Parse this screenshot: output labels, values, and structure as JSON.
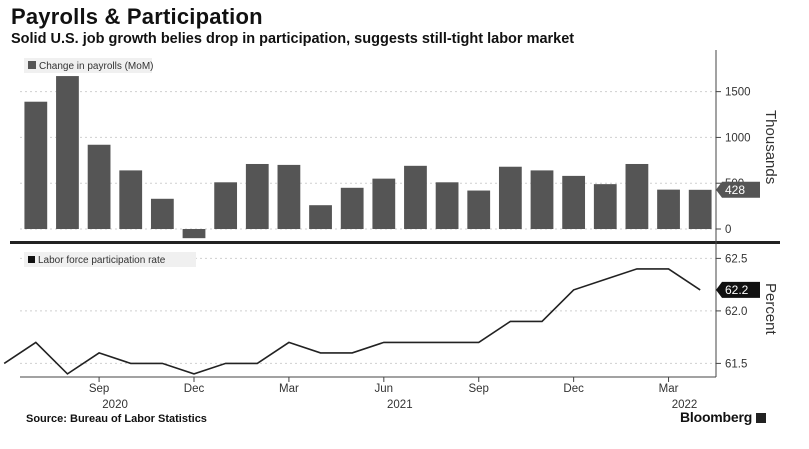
{
  "title": "Payrolls & Participation",
  "subtitle": "Solid U.S. job growth belies drop in participation, suggests still-tight labor market",
  "source": "Source: Bureau of Labor Statistics",
  "brand": "Bloomberg",
  "chart_data": [
    {
      "type": "bar",
      "legend": "Change in payrolls (MoM)",
      "ylabel": "Thousands",
      "ylim": [
        -120,
        1900
      ],
      "yticks": [
        0,
        500,
        1000,
        1500
      ],
      "ytick_labels": [
        "0",
        "500",
        "1000",
        "1500"
      ],
      "last_value_label": "428",
      "categories": [
        "2020-07",
        "2020-08",
        "2020-09",
        "2020-10",
        "2020-11",
        "2020-12",
        "2021-01",
        "2021-02",
        "2021-03",
        "2021-04",
        "2021-05",
        "2021-06",
        "2021-07",
        "2021-08",
        "2021-09",
        "2021-10",
        "2021-11",
        "2021-12",
        "2022-01",
        "2022-02",
        "2022-03",
        "2022-04"
      ],
      "values": [
        1390,
        1670,
        920,
        640,
        330,
        -100,
        510,
        710,
        700,
        260,
        450,
        550,
        690,
        510,
        420,
        680,
        640,
        580,
        490,
        710,
        430,
        428
      ],
      "color": "#555555",
      "grid": true
    },
    {
      "type": "line",
      "legend": "Labor force participation rate",
      "ylabel": "Percent",
      "ylim": [
        61.38,
        62.58
      ],
      "yticks": [
        61.5,
        62.0,
        62.5
      ],
      "ytick_labels": [
        "61.5",
        "62.0",
        "62.5"
      ],
      "last_value_label": "62.2",
      "x": [
        "2020-06",
        "2020-07",
        "2020-08",
        "2020-09",
        "2020-10",
        "2020-11",
        "2020-12",
        "2021-01",
        "2021-02",
        "2021-03",
        "2021-04",
        "2021-05",
        "2021-06",
        "2021-07",
        "2021-08",
        "2021-09",
        "2021-10",
        "2021-11",
        "2021-12",
        "2022-01",
        "2022-02",
        "2022-03",
        "2022-04"
      ],
      "y": [
        61.5,
        61.7,
        61.4,
        61.6,
        61.5,
        61.5,
        61.4,
        61.5,
        61.5,
        61.7,
        61.6,
        61.6,
        61.7,
        61.7,
        61.7,
        61.7,
        61.9,
        61.9,
        62.2,
        62.3,
        62.4,
        62.4,
        62.2
      ],
      "color": "#222222",
      "grid": true
    }
  ],
  "x_axis": {
    "ticks": [
      {
        "month": "Sep",
        "year": "2020"
      },
      {
        "month": "Dec",
        "year": ""
      },
      {
        "month": "Mar",
        "year": ""
      },
      {
        "month": "Jun",
        "year": "2021"
      },
      {
        "month": "Sep",
        "year": ""
      },
      {
        "month": "Dec",
        "year": ""
      },
      {
        "month": "Mar",
        "year": "2022"
      }
    ]
  }
}
